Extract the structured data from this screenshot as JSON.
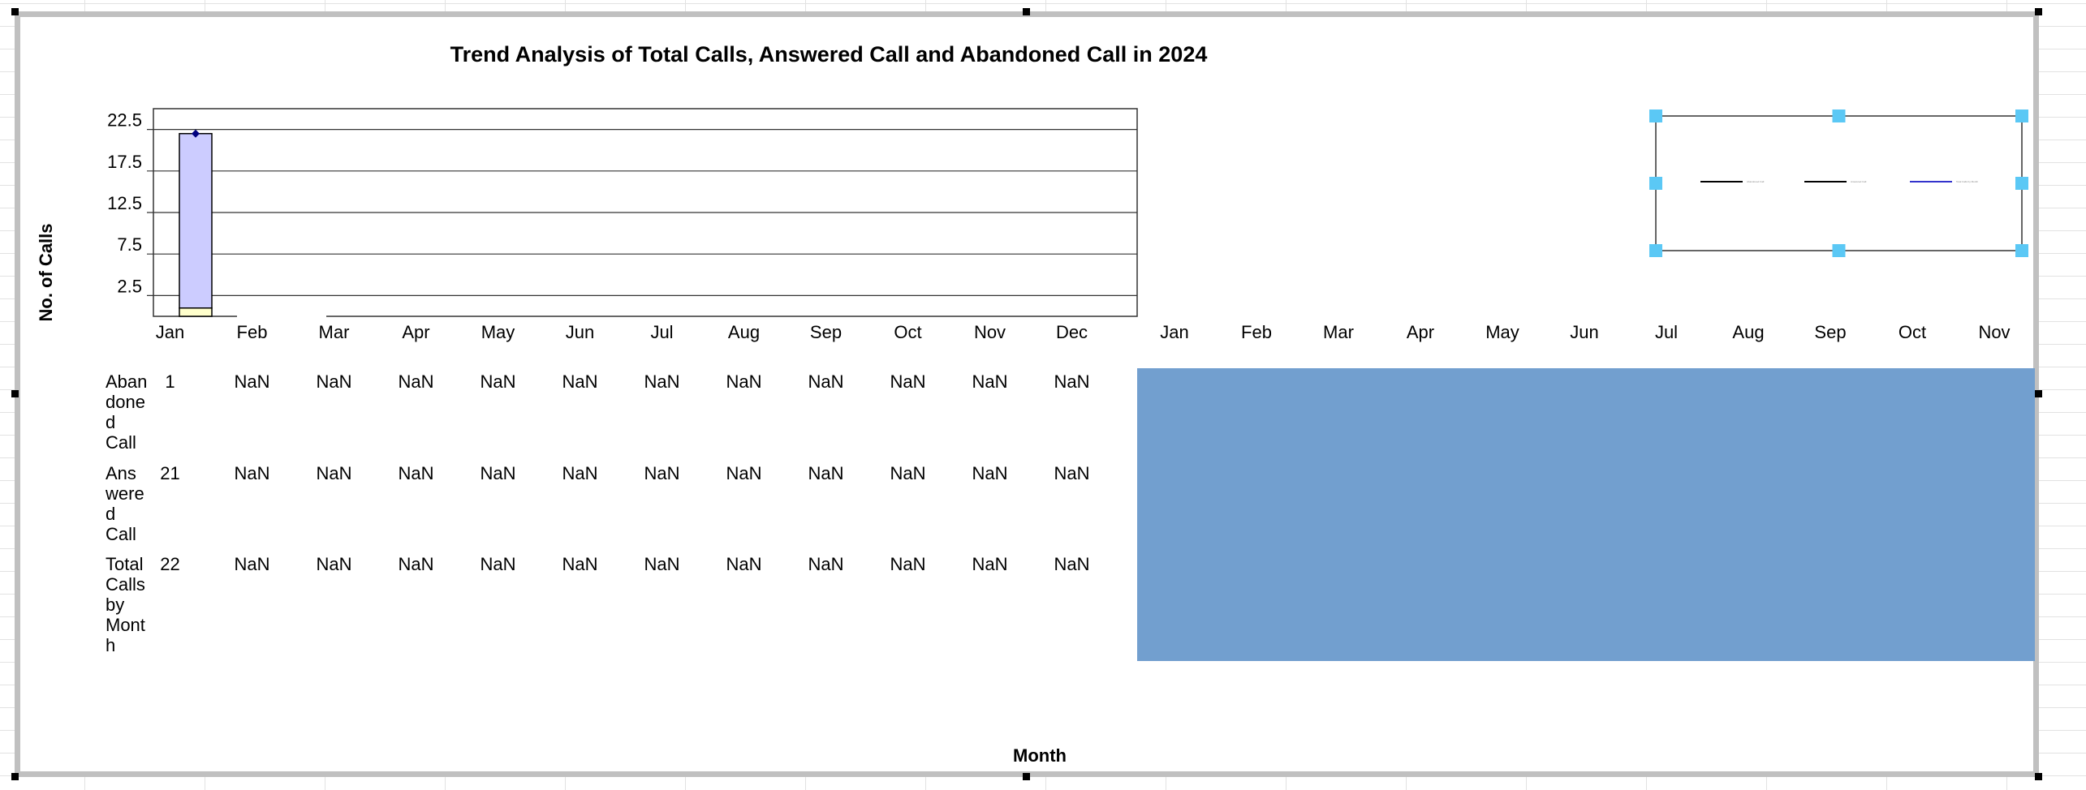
{
  "chart_data": {
    "type": "bar",
    "title": "Trend Analysis of Total Calls, Answered Call and Abandoned Call in 2024",
    "xlabel": "Month",
    "ylabel": "No. of Calls",
    "categories": [
      "Jan",
      "Feb",
      "Mar",
      "Apr",
      "May",
      "Jun",
      "Jul",
      "Aug",
      "Sep",
      "Oct",
      "Nov",
      "Dec"
    ],
    "extra_categories": [
      "Jan",
      "Feb",
      "Mar",
      "Apr",
      "May",
      "Jun",
      "Jul",
      "Aug",
      "Sep",
      "Oct",
      "Nov"
    ],
    "y_ticks": [
      "22.5",
      "17.5",
      "12.5",
      "7.5",
      "2.5"
    ],
    "ylim": [
      0,
      25
    ],
    "grid": true,
    "legend_position": "top-right",
    "series": [
      {
        "name": "Abandoned Call",
        "label_lines": [
          "Aban",
          "done",
          "d",
          "Call"
        ],
        "values": [
          1,
          null,
          null,
          null,
          null,
          null,
          null,
          null,
          null,
          null,
          null,
          null
        ],
        "display": [
          "1",
          "NaN",
          "NaN",
          "NaN",
          "NaN",
          "NaN",
          "NaN",
          "NaN",
          "NaN",
          "NaN",
          "NaN",
          "NaN"
        ],
        "color": "#ffffcc"
      },
      {
        "name": "Answered Call",
        "label_lines": [
          "Ans",
          "were",
          "d",
          "Call"
        ],
        "values": [
          21,
          null,
          null,
          null,
          null,
          null,
          null,
          null,
          null,
          null,
          null,
          null
        ],
        "display": [
          "21",
          "NaN",
          "NaN",
          "NaN",
          "NaN",
          "NaN",
          "NaN",
          "NaN",
          "NaN",
          "NaN",
          "NaN",
          "NaN"
        ],
        "color": "#ccccff"
      },
      {
        "name": "Total Calls by Month",
        "label_lines": [
          "Total",
          "Calls",
          "by",
          "Mont",
          "h"
        ],
        "values": [
          22,
          null,
          null,
          null,
          null,
          null,
          null,
          null,
          null,
          null,
          null,
          null
        ],
        "display": [
          "22",
          "NaN",
          "NaN",
          "NaN",
          "NaN",
          "NaN",
          "NaN",
          "NaN",
          "NaN",
          "NaN",
          "NaN",
          "NaN"
        ],
        "color": "#000080"
      }
    ]
  },
  "colors": {
    "frame": "#c0c0c0",
    "selection_handle": "#5bc8f5",
    "fill_block": "#729fcf",
    "grid": "#333333"
  }
}
